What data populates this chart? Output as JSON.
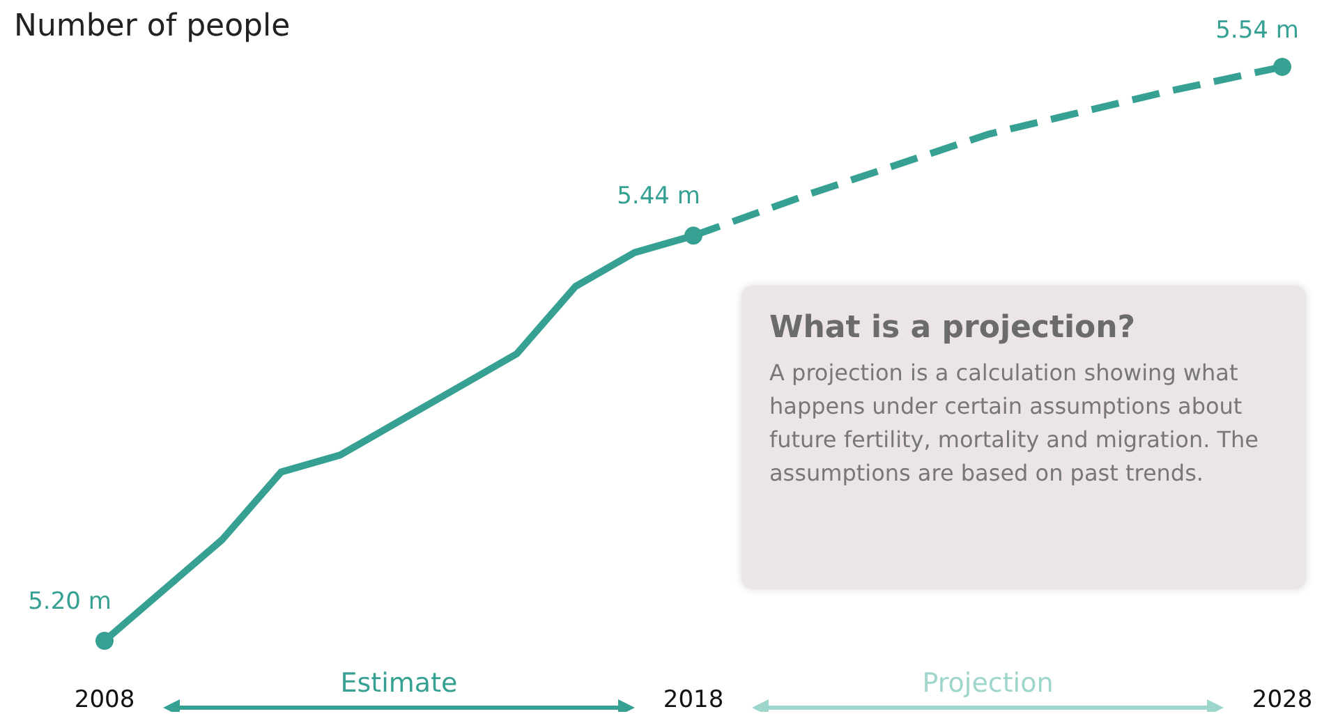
{
  "chart_data": {
    "type": "line",
    "ylabel": "Number of people",
    "xlim": [
      2008,
      2028
    ],
    "xticks": [
      2008,
      2018,
      2028
    ],
    "grid": false,
    "series": [
      {
        "color": "#36a192",
        "line_style": "solid",
        "x": [
          2008,
          2009,
          2010,
          2011,
          2012,
          2013,
          2014,
          2015,
          2016,
          2017,
          2018
        ],
        "values": [
          5.2,
          5.23,
          5.26,
          5.3,
          5.31,
          5.33,
          5.35,
          5.37,
          5.41,
          5.43,
          5.44
        ],
        "value_labels": [
          "5.20 m",
          null,
          null,
          null,
          null,
          null,
          null,
          null,
          null,
          null,
          "5.44 m"
        ]
      },
      {
        "color": "#36a192",
        "line_style": "dashed",
        "x": [
          2018,
          2020,
          2023,
          2026,
          2028
        ],
        "values": [
          5.44,
          5.465,
          5.5,
          5.525,
          5.54
        ],
        "value_labels": [
          null,
          null,
          null,
          null,
          "5.54 m"
        ]
      }
    ],
    "annotations": [
      "Estimate",
      "Projection",
      "What is a projection?",
      "A projection is a calculation showing what happens under certain assumptions about future fertility, mortality and migration. The assumptions are based on past trends."
    ]
  }
}
